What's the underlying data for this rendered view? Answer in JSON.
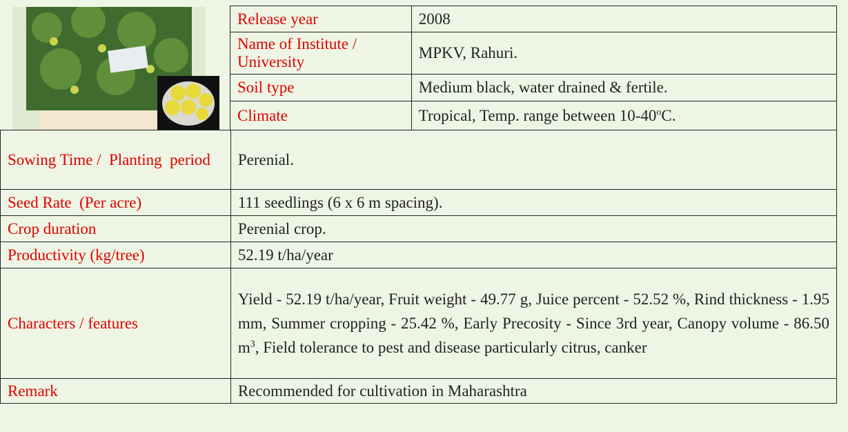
{
  "top_table": {
    "rows": [
      {
        "label": "Release year",
        "value": "2008"
      },
      {
        "label": "Name of Institute / University",
        "value": "MPKV, Rahuri."
      },
      {
        "label": "Soil type",
        "value": "Medium black, water drained & fertile."
      },
      {
        "label": "Climate",
        "value": {
          "text": "Tropical, Temp. range between 10-40",
          "sup": "o",
          "tail": "C."
        }
      }
    ]
  },
  "main_table": {
    "rows": [
      {
        "label": "Sowing Time /  Planting  period",
        "value": "Perenial."
      },
      {
        "label": "Seed Rate  (Per acre)",
        "value": "111 seedlings (6 x 6 m spacing)."
      },
      {
        "label": "Crop duration",
        "value": "Perenial crop."
      },
      {
        "label": "Productivity (kg/tree)",
        "value": "52.19 t/ha/year"
      },
      {
        "label": "Characters / features",
        "value": {
          "text": "Yield - 52.19 t/ha/year, Fruit weight - 49.77 g, Juice percent - 52.52 %, Rind thickness - 1.95 mm, Summer cropping - 25.42 %, Early Precosity - Since 3rd year, Canopy volume - 86.50 m",
          "sup": "3",
          "tail": ", Field tolerance to pest and disease particularly citrus, canker"
        }
      },
      {
        "label": "Remark",
        "value": "Recommended for cultivation in Maharashtra"
      }
    ]
  }
}
